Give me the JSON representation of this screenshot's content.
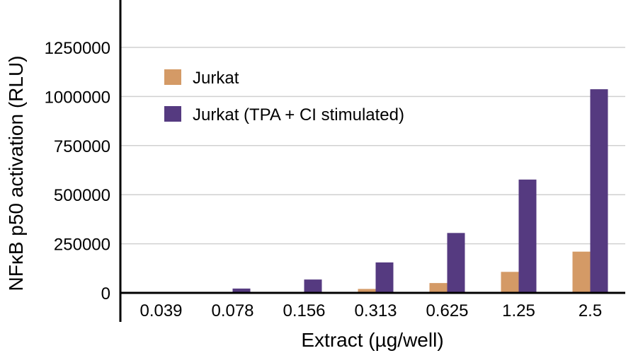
{
  "chart_data": {
    "type": "bar",
    "title": "",
    "xlabel": "Extract (µg/well)",
    "ylabel": "NFκB p50 activation (RLU)",
    "categories": [
      "0.039",
      "0.078",
      "0.156",
      "0.313",
      "0.625",
      "1.25",
      "2.5"
    ],
    "series": [
      {
        "name": "Jurkat",
        "color": "#d49a66",
        "values": [
          0,
          0,
          0,
          20000,
          50000,
          107000,
          210000
        ]
      },
      {
        "name": "Jurkat (TPA + CI stimulated)",
        "color": "#553a80",
        "values": [
          0,
          22000,
          68000,
          155000,
          305000,
          577000,
          1037000
        ]
      }
    ],
    "ylim": [
      0,
      1500000
    ],
    "yticks": [
      0,
      250000,
      500000,
      750000,
      1000000,
      1250000
    ],
    "ytick_labels": [
      "0",
      "250000",
      "500000",
      "750000",
      "1000000",
      "1250000"
    ],
    "grid": true,
    "legend_position": "top-left"
  }
}
